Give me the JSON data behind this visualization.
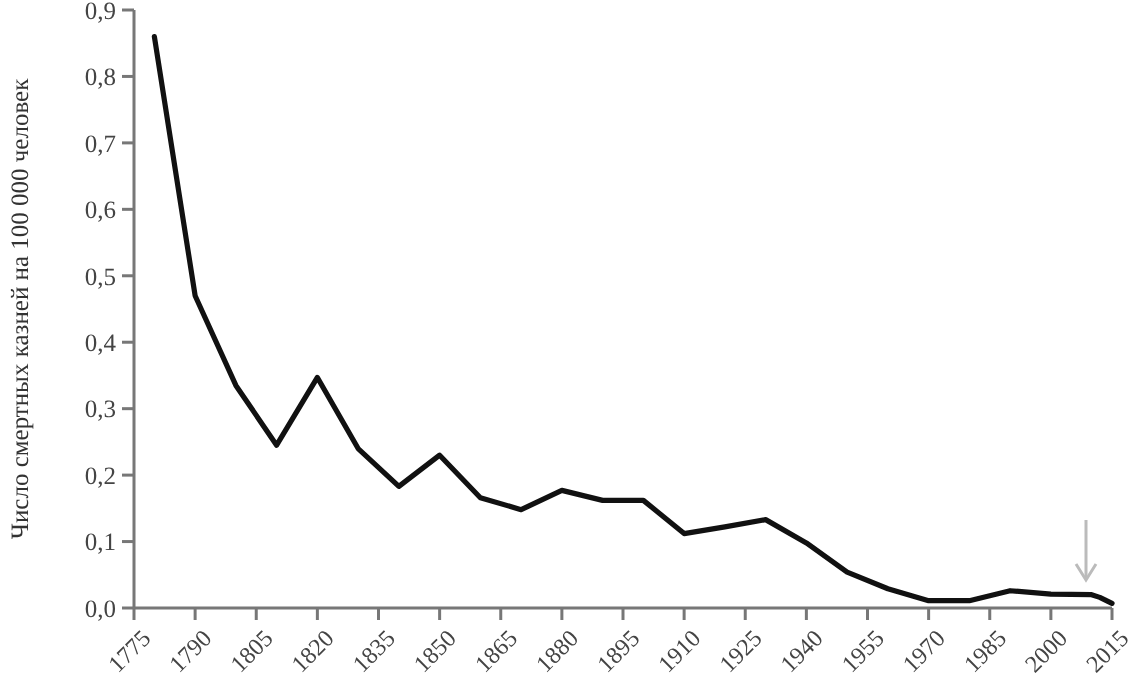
{
  "chart_data": {
    "type": "line",
    "ylabel": "Число смертных казней на 100 000 человек",
    "x": [
      1780,
      1790,
      1800,
      1810,
      1820,
      1830,
      1840,
      1850,
      1860,
      1870,
      1880,
      1890,
      1900,
      1910,
      1920,
      1930,
      1940,
      1950,
      1960,
      1970,
      1980,
      1990,
      2000,
      2010,
      2012,
      2015
    ],
    "series": [
      {
        "color": "#111111",
        "values": [
          0.86,
          0.47,
          0.335,
          0.245,
          0.347,
          0.24,
          0.183,
          0.23,
          0.166,
          0.148,
          0.177,
          0.162,
          0.162,
          0.112,
          0.122,
          0.133,
          0.098,
          0.054,
          0.029,
          0.011,
          0.011,
          0.026,
          0.021,
          0.02,
          0.016,
          0.007
        ]
      }
    ],
    "xlim": [
      1775,
      2015
    ],
    "xticks": [
      1775,
      1790,
      1805,
      1820,
      1835,
      1850,
      1865,
      1880,
      1895,
      1910,
      1925,
      1940,
      1955,
      1970,
      1985,
      2000,
      2015
    ],
    "ylim": [
      0,
      0.9
    ],
    "yticks": [
      {
        "value": 0,
        "label": "0,0"
      },
      {
        "value": 0.1,
        "label": "0,1"
      },
      {
        "value": 0.2,
        "label": "0,2"
      },
      {
        "value": 0.3,
        "label": "0,3"
      },
      {
        "value": 0.4,
        "label": "0,4"
      },
      {
        "value": 0.5,
        "label": "0,5"
      },
      {
        "value": 0.6,
        "label": "0,6"
      },
      {
        "value": 0.7,
        "label": "0,7"
      },
      {
        "value": 0.8,
        "label": "0,8"
      },
      {
        "value": 0.9,
        "label": "0,9"
      }
    ],
    "grid": false,
    "marker": "none",
    "line_style": "solid"
  }
}
